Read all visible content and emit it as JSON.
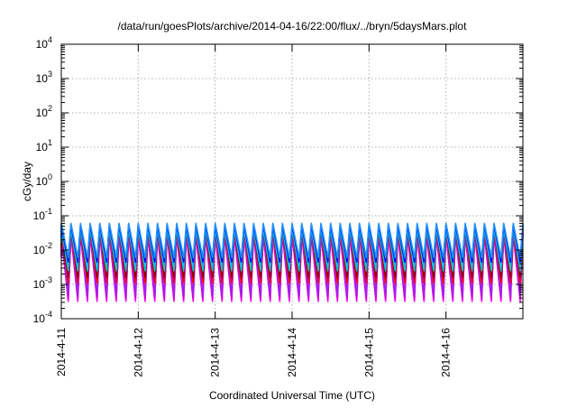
{
  "chart_data": {
    "type": "line",
    "title": "/data/run/goesPlots/archive/2014-04-16/22:00/flux/../bryn/5daysMars.plot",
    "xlabel": "Coordinated Universal Time (UTC)",
    "ylabel": "cGy/day",
    "yscale": "log",
    "ylim": [
      0.0001,
      10000
    ],
    "xlim": [
      "2014-04-11 00:00",
      "2014-04-17 00:00"
    ],
    "x_ticks": [
      "2014-4-11",
      "2014-4-12",
      "2014-4-13",
      "2014-4-14",
      "2014-4-15",
      "2014-4-16"
    ],
    "y_ticks": [
      {
        "value": 0.0001,
        "base": "10",
        "exp": "-4"
      },
      {
        "value": 0.001,
        "base": "10",
        "exp": "-3"
      },
      {
        "value": 0.01,
        "base": "10",
        "exp": "-2"
      },
      {
        "value": 0.1,
        "base": "10",
        "exp": "-1"
      },
      {
        "value": 1,
        "base": "10",
        "exp": "0"
      },
      {
        "value": 10,
        "base": "10",
        "exp": "1"
      },
      {
        "value": 100,
        "base": "10",
        "exp": "2"
      },
      {
        "value": 1000,
        "base": "10",
        "exp": "3"
      },
      {
        "value": 10000,
        "base": "10",
        "exp": "4"
      }
    ],
    "grid": true,
    "legend": "none",
    "oscillation": {
      "cycles_per_day": 8,
      "phase": 0.35
    },
    "series": [
      {
        "color": "#ff00ff",
        "peak": 0.028,
        "trough": 0.00032
      },
      {
        "color": "#cc00cc",
        "peak": 0.03,
        "trough": 0.0004
      },
      {
        "color": "#a020f0",
        "peak": 0.035,
        "trough": 0.0005
      },
      {
        "color": "#ff0000",
        "peak": 0.04,
        "trough": 0.0011
      },
      {
        "color": "#8b0000",
        "peak": 0.045,
        "trough": 0.0016
      },
      {
        "color": "#00cdcd",
        "peak": 0.042,
        "trough": 0.0025
      },
      {
        "color": "#00bfff",
        "peak": 0.05,
        "trough": 0.0035
      },
      {
        "color": "#0000ff",
        "peak": 0.055,
        "trough": 0.0045
      },
      {
        "color": "#1e90ff",
        "peak": 0.06,
        "trough": 0.006
      }
    ]
  }
}
